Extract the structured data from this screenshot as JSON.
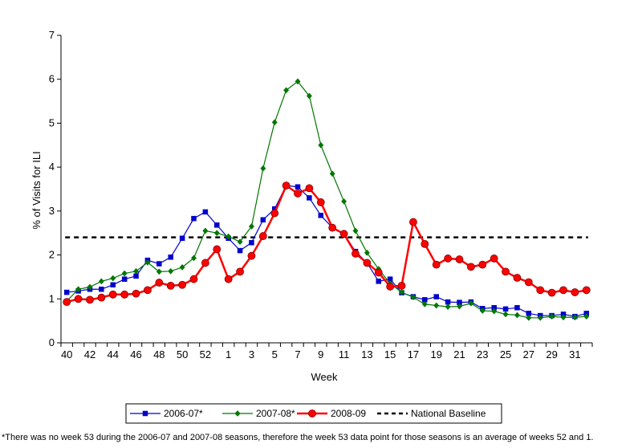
{
  "chart_data": {
    "type": "line",
    "ylabel": "% of Visits for ILI",
    "xlabel": "Week",
    "ylim": [
      0,
      7
    ],
    "yticks": [
      0,
      1,
      2,
      3,
      4,
      5,
      6,
      7
    ],
    "categories": [
      "40",
      "41",
      "42",
      "43",
      "44",
      "45",
      "46",
      "47",
      "48",
      "49",
      "50",
      "51",
      "52",
      "53",
      "1",
      "2",
      "3",
      "4",
      "5",
      "6",
      "7",
      "8",
      "9",
      "10",
      "11",
      "12",
      "13",
      "14",
      "15",
      "16",
      "17",
      "18",
      "19",
      "20",
      "21",
      "22",
      "23",
      "24",
      "25",
      "26",
      "27",
      "28",
      "29",
      "30",
      "31",
      "32"
    ],
    "tick_labels": [
      "40",
      "42",
      "44",
      "46",
      "48",
      "50",
      "52",
      "1",
      "3",
      "5",
      "7",
      "9",
      "11",
      "13",
      "15",
      "17",
      "19",
      "21",
      "23",
      "25",
      "27",
      "29",
      "31"
    ],
    "grid": false,
    "legend_position": "bottom",
    "series": [
      {
        "name": "2006-07*",
        "color": "#0000cc",
        "marker": "square",
        "values": [
          1.15,
          1.18,
          1.22,
          1.22,
          1.32,
          1.45,
          1.52,
          1.88,
          1.8,
          1.95,
          2.38,
          2.83,
          2.98,
          2.68,
          2.38,
          2.1,
          2.28,
          2.8,
          3.05,
          3.58,
          3.55,
          3.3,
          2.9,
          2.62,
          2.48,
          2.08,
          1.82,
          1.4,
          1.45,
          1.14,
          1.05,
          0.98,
          1.05,
          0.93,
          0.92,
          0.93,
          0.78,
          0.8,
          0.77,
          0.8,
          0.67,
          0.62,
          0.62,
          0.65,
          0.6,
          0.67
        ]
      },
      {
        "name": "2007-08*",
        "color": "#007700",
        "marker": "diamond",
        "values": [
          0.95,
          1.22,
          1.27,
          1.4,
          1.47,
          1.58,
          1.63,
          1.83,
          1.62,
          1.63,
          1.72,
          1.93,
          2.55,
          2.5,
          2.42,
          2.3,
          2.65,
          3.97,
          5.02,
          5.75,
          5.95,
          5.62,
          4.5,
          3.85,
          3.22,
          2.55,
          2.05,
          1.68,
          1.35,
          1.15,
          1.04,
          0.88,
          0.85,
          0.82,
          0.83,
          0.9,
          0.73,
          0.72,
          0.65,
          0.63,
          0.57,
          0.57,
          0.6,
          0.58,
          0.58,
          0.6
        ]
      },
      {
        "name": "2008-09",
        "color": "#ff0000",
        "marker": "circle",
        "values": [
          0.93,
          1.0,
          0.98,
          1.03,
          1.1,
          1.1,
          1.12,
          1.2,
          1.37,
          1.3,
          1.32,
          1.45,
          1.82,
          2.13,
          1.45,
          1.62,
          1.98,
          2.43,
          2.95,
          3.58,
          3.4,
          3.52,
          3.2,
          2.62,
          2.48,
          2.03,
          1.82,
          1.6,
          1.28,
          1.3,
          2.75,
          2.25,
          1.78,
          1.92,
          1.9,
          1.73,
          1.78,
          1.92,
          1.62,
          1.48,
          1.38,
          1.2,
          1.14,
          1.2,
          1.15,
          1.2
        ]
      }
    ],
    "baseline": {
      "name": "National Baseline",
      "value": 2.4,
      "color": "#000000"
    }
  },
  "footnote": "*There was no week 53 during the 2006-07 and 2007-08 seasons, therefore the week 53 data point for those seasons is an average of weeks 52 and 1."
}
